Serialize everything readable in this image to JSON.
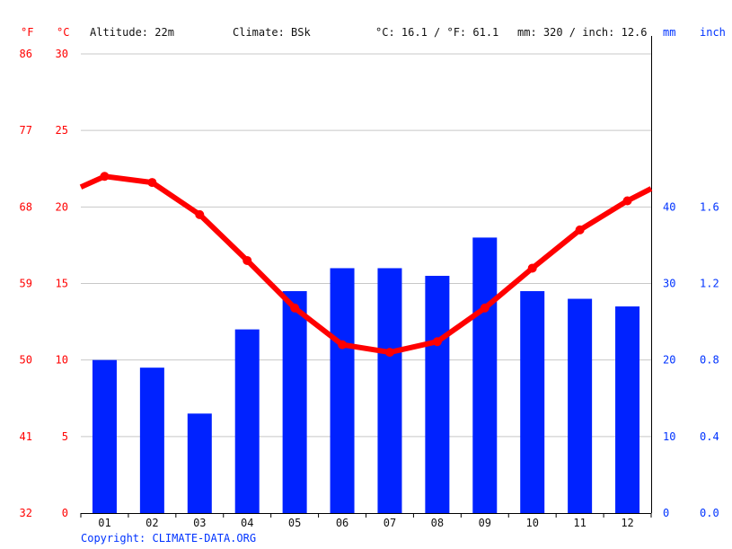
{
  "header": {
    "unit_f": "°F",
    "unit_c": "°C",
    "altitude": "Altitude: 22m",
    "climate": "Climate: BSk",
    "temp_summary": "°C: 16.1 / °F: 61.1",
    "precip_summary": "mm: 320 / inch: 12.6",
    "unit_mm": "mm",
    "unit_inch": "inch"
  },
  "footer": {
    "copyright": "Copyright: CLIMATE-DATA.ORG"
  },
  "colors": {
    "temperature": "#ff0000",
    "precipitation": "#0022ff",
    "grid": "#c8c8c8",
    "axis": "#000000"
  },
  "chart_data": {
    "type": "bar",
    "categories": [
      "01",
      "02",
      "03",
      "04",
      "05",
      "06",
      "07",
      "08",
      "09",
      "10",
      "11",
      "12"
    ],
    "series": [
      {
        "type": "bar",
        "axis": "right",
        "values": [
          20,
          19,
          13,
          24,
          29,
          32,
          32,
          31,
          36,
          29,
          28,
          27
        ]
      },
      {
        "type": "line",
        "axis": "left",
        "values": [
          22.0,
          21.6,
          19.5,
          16.5,
          13.4,
          11.0,
          10.5,
          11.2,
          13.4,
          16.0,
          18.5,
          20.4
        ],
        "edge_start": 21.3,
        "edge_end": 21.2
      }
    ],
    "axes": {
      "left_celsius": {
        "ylim": [
          0,
          30
        ],
        "ticks": [
          "0",
          "5",
          "10",
          "15",
          "20",
          "25",
          "30"
        ]
      },
      "left_fahrenheit": {
        "ticks": [
          "32",
          "41",
          "50",
          "59",
          "68",
          "77",
          "86"
        ]
      },
      "right_mm": {
        "ylim": [
          0,
          60
        ],
        "ticks": [
          "0",
          "10",
          "20",
          "30",
          "40"
        ]
      },
      "right_inch": {
        "ticks": [
          "0.0",
          "0.4",
          "0.8",
          "1.2",
          "1.6"
        ]
      }
    },
    "grid": true
  }
}
